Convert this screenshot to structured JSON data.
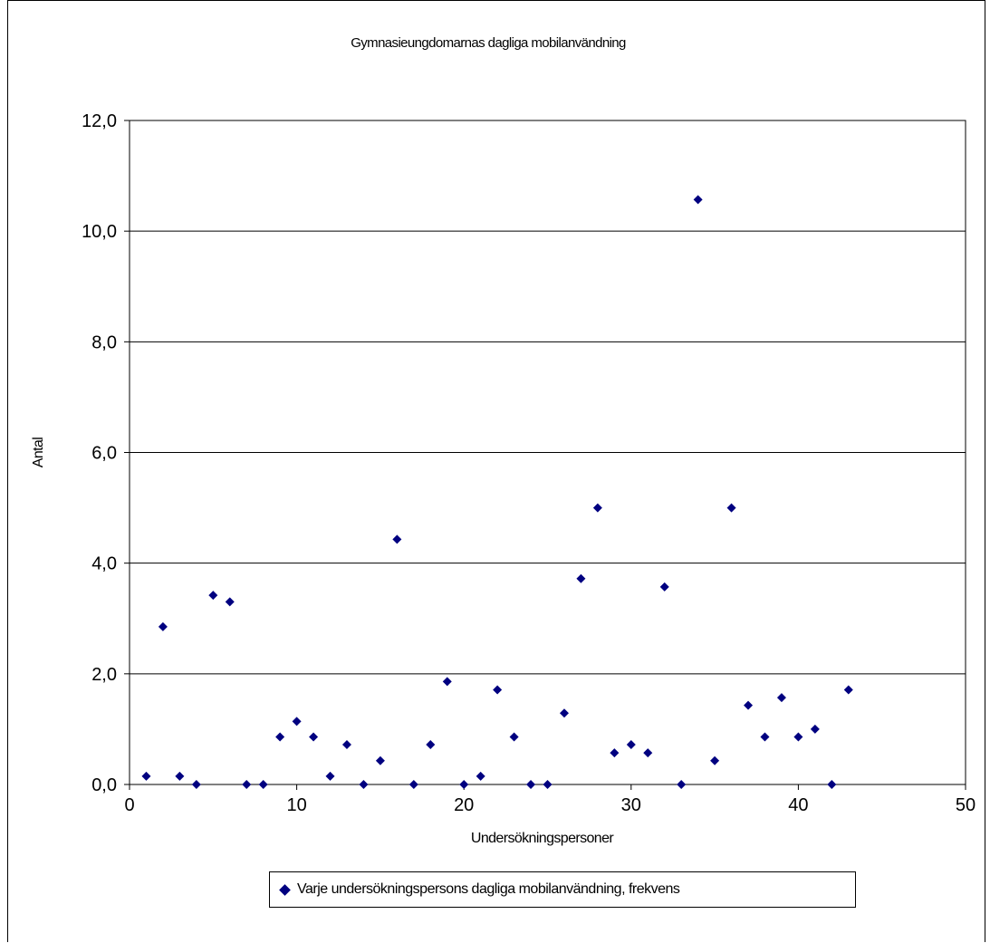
{
  "chart_data": {
    "type": "scatter",
    "title": "Gymnasieungdomarnas dagliga mobilanvändning",
    "xlabel": "Undersökningspersoner",
    "ylabel": "Antal",
    "xlim": [
      0,
      50
    ],
    "ylim": [
      0,
      12
    ],
    "x_ticks": [
      "0",
      "10",
      "20",
      "30",
      "40",
      "50"
    ],
    "y_ticks": [
      "0,0",
      "2,0",
      "4,0",
      "6,0",
      "8,0",
      "10,0",
      "12,0"
    ],
    "grid": "horizontal",
    "legend_position": "bottom",
    "marker_color": "#000080",
    "series": [
      {
        "name": "Varje undersökningspersons dagliga mobilanvändning, frekvens",
        "marker": "diamond",
        "x": [
          1,
          2,
          3,
          4,
          5,
          6,
          7,
          8,
          9,
          10,
          11,
          12,
          13,
          14,
          15,
          16,
          17,
          18,
          19,
          20,
          21,
          22,
          23,
          24,
          25,
          26,
          27,
          28,
          29,
          30,
          31,
          32,
          33,
          34,
          35,
          36,
          37,
          38,
          39,
          40,
          41,
          42,
          43
        ],
        "y": [
          0.15,
          2.85,
          0.15,
          0.0,
          3.42,
          3.3,
          0.0,
          0.0,
          0.86,
          1.14,
          0.86,
          0.15,
          0.72,
          0.0,
          0.43,
          4.43,
          0.0,
          0.72,
          1.86,
          0.0,
          0.15,
          1.71,
          0.86,
          0.0,
          0.0,
          1.29,
          3.72,
          5.0,
          0.57,
          0.72,
          0.57,
          3.57,
          0.0,
          10.57,
          0.43,
          5.0,
          1.43,
          0.86,
          1.57,
          0.86,
          1.0,
          0.0,
          1.71
        ]
      }
    ]
  }
}
